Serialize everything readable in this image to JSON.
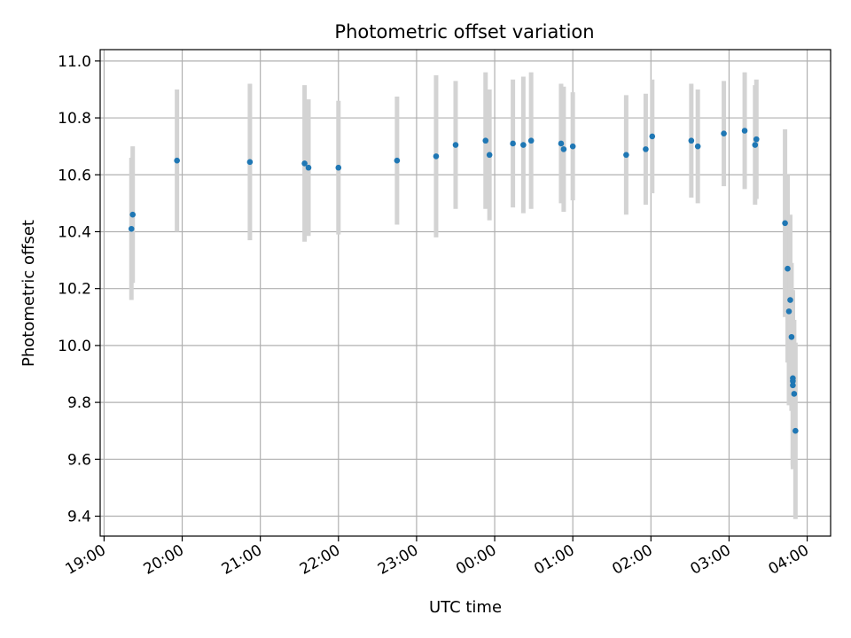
{
  "chart_data": {
    "type": "scatter",
    "title": "Photometric offset variation",
    "xlabel": "UTC time",
    "ylabel": "Photometric offset",
    "x_unit": "hours since 19:00 UTC",
    "xlim": [
      "18:57",
      "04:18"
    ],
    "ylim": [
      9.33,
      11.04
    ],
    "x_ticks": [
      "19:00",
      "20:00",
      "21:00",
      "22:00",
      "23:00",
      "00:00",
      "01:00",
      "02:00",
      "03:00",
      "04:00"
    ],
    "y_ticks": [
      "9.4",
      "9.6",
      "9.8",
      "10.0",
      "10.2",
      "10.4",
      "10.6",
      "10.8",
      "11.0"
    ],
    "grid": true,
    "colors": {
      "point": "#1f77b4",
      "errorbar": "#d3d3d3",
      "grid": "#b0b0b0"
    },
    "series": [
      {
        "points": [
          {
            "time": "19:21",
            "y": 10.41,
            "err": 0.25
          },
          {
            "time": "19:22",
            "y": 10.46,
            "err": 0.24
          },
          {
            "time": "19:56",
            "y": 10.65,
            "err": 0.25
          },
          {
            "time": "20:52",
            "y": 10.645,
            "err": 0.275
          },
          {
            "time": "21:34",
            "y": 10.64,
            "err": 0.275
          },
          {
            "time": "21:37",
            "y": 10.625,
            "err": 0.24
          },
          {
            "time": "22:00",
            "y": 10.625,
            "err": 0.235
          },
          {
            "time": "22:45",
            "y": 10.65,
            "err": 0.225
          },
          {
            "time": "23:15",
            "y": 10.665,
            "err": 0.285
          },
          {
            "time": "23:30",
            "y": 10.705,
            "err": 0.225
          },
          {
            "time": "23:53",
            "y": 10.72,
            "err": 0.24
          },
          {
            "time": "23:56",
            "y": 10.67,
            "err": 0.23
          },
          {
            "time": "00:14",
            "y": 10.71,
            "err": 0.225
          },
          {
            "time": "00:22",
            "y": 10.705,
            "err": 0.24
          },
          {
            "time": "00:28",
            "y": 10.72,
            "err": 0.24
          },
          {
            "time": "00:51",
            "y": 10.71,
            "err": 0.21
          },
          {
            "time": "00:53",
            "y": 10.69,
            "err": 0.22
          },
          {
            "time": "01:00",
            "y": 10.7,
            "err": 0.19
          },
          {
            "time": "01:41",
            "y": 10.67,
            "err": 0.21
          },
          {
            "time": "01:56",
            "y": 10.69,
            "err": 0.195
          },
          {
            "time": "02:01",
            "y": 10.735,
            "err": 0.2
          },
          {
            "time": "02:31",
            "y": 10.72,
            "err": 0.2
          },
          {
            "time": "02:36",
            "y": 10.7,
            "err": 0.2
          },
          {
            "time": "02:56",
            "y": 10.745,
            "err": 0.185
          },
          {
            "time": "03:12",
            "y": 10.755,
            "err": 0.205
          },
          {
            "time": "03:20",
            "y": 10.705,
            "err": 0.21
          },
          {
            "time": "03:21",
            "y": 10.725,
            "err": 0.21
          },
          {
            "time": "03:43",
            "y": 10.43,
            "err": 0.33
          },
          {
            "time": "03:45",
            "y": 10.27,
            "err": 0.33
          },
          {
            "time": "03:46",
            "y": 10.12,
            "err": 0.33
          },
          {
            "time": "03:47",
            "y": 10.16,
            "err": 0.3
          },
          {
            "time": "03:48",
            "y": 10.03,
            "err": 0.26
          },
          {
            "time": "03:49",
            "y": 9.875,
            "err": 0.31
          },
          {
            "time": "03:49",
            "y": 9.885,
            "err": 0.31
          },
          {
            "time": "03:49",
            "y": 9.86,
            "err": 0.28
          },
          {
            "time": "03:50",
            "y": 9.83,
            "err": 0.26
          },
          {
            "time": "03:51",
            "y": 9.7,
            "err": 0.31
          }
        ]
      }
    ]
  }
}
